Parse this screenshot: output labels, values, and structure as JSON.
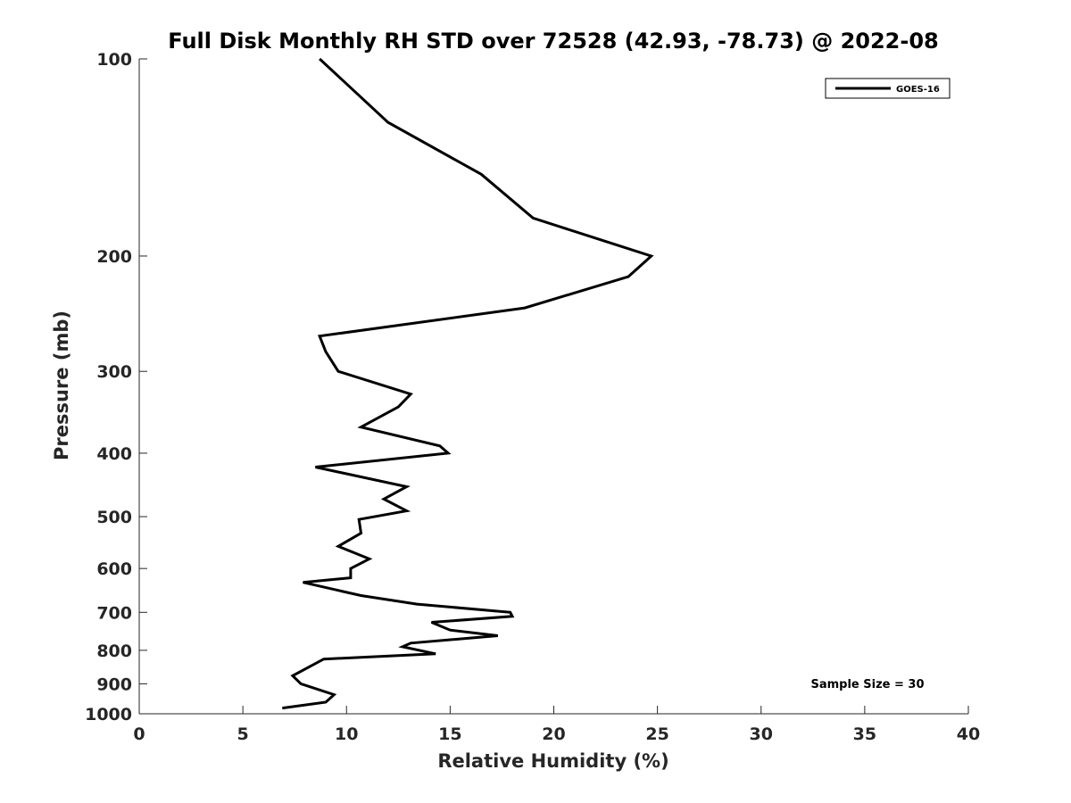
{
  "chart_data": {
    "type": "line",
    "title": "Full Disk Monthly RH STD over 72528 (42.93, -78.73) @ 2022-08",
    "xlabel": "Relative Humidity (%)",
    "ylabel": "Pressure (mb)",
    "xlim": [
      0,
      40
    ],
    "ylim": [
      100,
      1000
    ],
    "y_scale": "log",
    "y_reversed": true,
    "grid": false,
    "x_ticks": [
      0,
      5,
      10,
      15,
      20,
      25,
      30,
      35,
      40
    ],
    "x_tick_labels": [
      "0",
      "5",
      "10",
      "15",
      "20",
      "25",
      "30",
      "35",
      "40"
    ],
    "y_ticks": [
      100,
      200,
      300,
      400,
      500,
      600,
      700,
      800,
      900,
      1000
    ],
    "y_tick_labels": [
      "100",
      "200",
      "300",
      "400",
      "500",
      "600",
      "700",
      "800",
      "900",
      "1000"
    ],
    "legend": {
      "placement": "top-right",
      "entries": [
        "GOES-16"
      ]
    },
    "annotations": [
      "Sample Size = 30"
    ],
    "series": [
      {
        "name": "GOES-16",
        "color": "#000000",
        "x": [
          8.7,
          12.0,
          16.5,
          19.0,
          22.5,
          24.7,
          23.6,
          18.6,
          8.7,
          9.0,
          9.6,
          13.1,
          12.5,
          10.7,
          14.5,
          14.9,
          8.5,
          12.9,
          11.8,
          12.9,
          10.6,
          10.7,
          9.6,
          11.1,
          10.2,
          10.2,
          7.9,
          10.7,
          13.4,
          17.9,
          18.0,
          14.1,
          15.0,
          17.3,
          13.1,
          12.7,
          14.3,
          8.9,
          7.4,
          7.8,
          9.4,
          9.0,
          6.9
        ],
        "y": [
          100,
          125,
          150,
          175,
          190,
          200,
          215,
          240,
          265,
          280,
          300,
          325,
          340,
          365,
          390,
          400,
          420,
          450,
          470,
          490,
          505,
          530,
          555,
          580,
          600,
          620,
          630,
          660,
          680,
          700,
          710,
          725,
          745,
          760,
          780,
          790,
          810,
          825,
          875,
          900,
          935,
          960,
          980
        ]
      }
    ]
  }
}
